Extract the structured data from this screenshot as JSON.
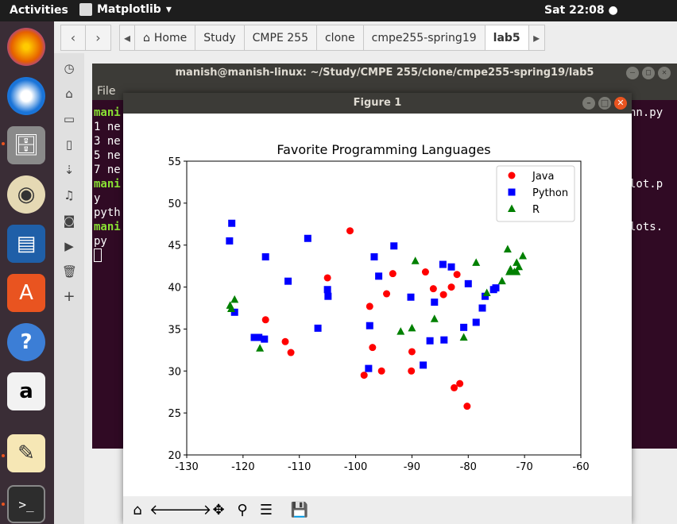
{
  "topbar": {
    "activities": "Activities",
    "app_name": "Matplotlib",
    "clock": "Sat 22:08"
  },
  "files": {
    "breadcrumbs": [
      "Home",
      "Study",
      "CMPE 255",
      "clone",
      "cmpe255-spring19",
      "lab5"
    ]
  },
  "terminal": {
    "title": "manish@manish-linux: ~/Study/CMPE 255/clone/cmpe255-spring19/lab5",
    "menu": "File",
    "lines": [
      "mani",
      "1 ne",
      "3 ne",
      "5 ne",
      "7 ne",
      "mani",
      "y",
      "pyth",
      "mani",
      "py"
    ],
    "right_lines": [
      "nn.py",
      "lot.p",
      "lots."
    ]
  },
  "figure": {
    "window_title": "Figure 1"
  },
  "chart_data": {
    "type": "scatter",
    "title": "Favorite Programming Languages",
    "xlabel": "",
    "ylabel": "",
    "xlim": [
      -130,
      -60
    ],
    "ylim": [
      20,
      55
    ],
    "xticks": [
      -130,
      -120,
      -110,
      -100,
      -90,
      -80,
      -70,
      -60
    ],
    "yticks": [
      20,
      25,
      30,
      35,
      40,
      45,
      50,
      55
    ],
    "legend_position": "top-right",
    "series": [
      {
        "name": "Java",
        "color": "#ff0000",
        "marker": "circle",
        "points": [
          [
            -118,
            34
          ],
          [
            -116,
            36.1
          ],
          [
            -112.5,
            33.5
          ],
          [
            -111.5,
            32.2
          ],
          [
            -105,
            41.1
          ],
          [
            -101,
            46.7
          ],
          [
            -98.5,
            29.5
          ],
          [
            -97.5,
            37.7
          ],
          [
            -97,
            32.8
          ],
          [
            -95.4,
            30
          ],
          [
            -94.5,
            39.2
          ],
          [
            -93.4,
            41.6
          ],
          [
            -90.1,
            30
          ],
          [
            -90,
            32.3
          ],
          [
            -87.6,
            41.8
          ],
          [
            -86.2,
            39.8
          ],
          [
            -84.4,
            39.1
          ],
          [
            -83,
            40
          ],
          [
            -82,
            41.5
          ],
          [
            -82.5,
            28
          ],
          [
            -81.5,
            28.5
          ],
          [
            -80.2,
            25.8
          ]
        ]
      },
      {
        "name": "Python",
        "color": "#0000ff",
        "marker": "square",
        "points": [
          [
            -122.4,
            45.5
          ],
          [
            -122,
            47.6
          ],
          [
            -121.5,
            37
          ],
          [
            -118,
            34
          ],
          [
            -117.2,
            34
          ],
          [
            -116.2,
            33.8
          ],
          [
            -116,
            43.6
          ],
          [
            -112,
            40.7
          ],
          [
            -108.5,
            45.8
          ],
          [
            -106.7,
            35.1
          ],
          [
            -105,
            39.7
          ],
          [
            -104.9,
            38.9
          ],
          [
            -97.7,
            30.3
          ],
          [
            -97.5,
            35.4
          ],
          [
            -96.7,
            43.6
          ],
          [
            -95.9,
            41.3
          ],
          [
            -93.2,
            44.9
          ],
          [
            -90.2,
            38.8
          ],
          [
            -88,
            30.7
          ],
          [
            -86.8,
            33.6
          ],
          [
            -86,
            38.2
          ],
          [
            -84.5,
            42.7
          ],
          [
            -84.3,
            33.7
          ],
          [
            -83,
            42.4
          ],
          [
            -80.8,
            35.2
          ],
          [
            -80,
            40.4
          ],
          [
            -78.6,
            35.8
          ],
          [
            -77.5,
            37.5
          ],
          [
            -77,
            38.9
          ],
          [
            -75.5,
            39.7
          ],
          [
            -75.1,
            39.9
          ]
        ]
      },
      {
        "name": "R",
        "color": "#008000",
        "marker": "triangle",
        "points": [
          [
            -122.3,
            37.8
          ],
          [
            -122.1,
            37.4
          ],
          [
            -121.5,
            38.5
          ],
          [
            -117,
            32.7
          ],
          [
            -92,
            34.7
          ],
          [
            -90,
            35.1
          ],
          [
            -89.4,
            43.1
          ],
          [
            -86,
            36.2
          ],
          [
            -80.8,
            34
          ],
          [
            -78.6,
            42.9
          ],
          [
            -76.7,
            39.3
          ],
          [
            -74,
            40.7
          ],
          [
            -73,
            44.5
          ],
          [
            -72.7,
            41.8
          ],
          [
            -72.5,
            42.1
          ],
          [
            -71.8,
            41.8
          ],
          [
            -71.4,
            41.8
          ],
          [
            -71.4,
            42.9
          ],
          [
            -71,
            42.4
          ],
          [
            -70.3,
            43.7
          ]
        ]
      }
    ]
  },
  "toolbar": [
    "home-icon",
    "back-icon",
    "forward-icon",
    "pan-icon",
    "zoom-icon",
    "configure-icon",
    "save-icon"
  ]
}
